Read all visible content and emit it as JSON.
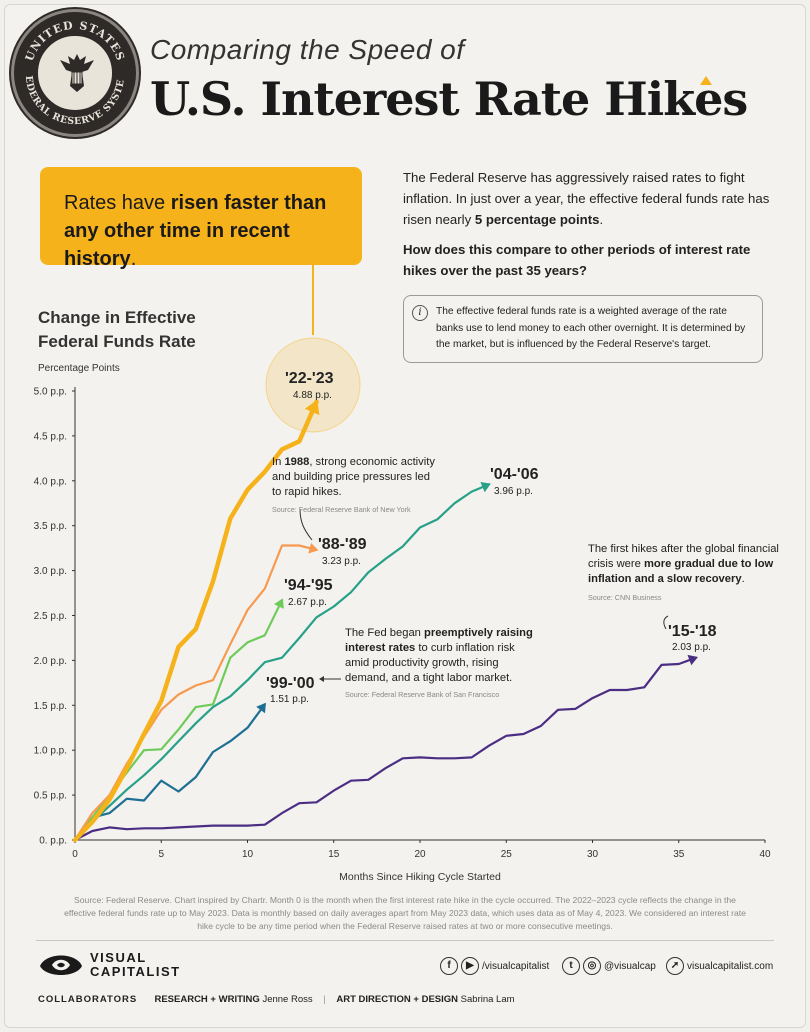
{
  "header": {
    "seal_text_top": "UNITED STATES",
    "seal_text_bottom": "FEDERAL RESERVE SYSTEM",
    "subtitle": "Comparing the Speed of",
    "title": "U.S. Interest Rate Hikes"
  },
  "callout": {
    "pre": "Rates have ",
    "bold1": "risen faster than any",
    "bold2": "other time in recent history",
    "post": "."
  },
  "intro": {
    "p1": "The Federal Reserve has aggressively raised rates to fight inflation. In just over a year, the effective federal funds rate has risen nearly ",
    "p1_bold": "5 percentage points",
    "p1_end": ".",
    "question": "How does this compare to other periods of interest rate hikes over the past 35 years?"
  },
  "info": {
    "icon": "info-icon",
    "text": "The effective federal funds rate is a weighted average of the rate banks use to lend money to each other overnight. It is determined by the market, but is influenced by the Federal Reserve's target."
  },
  "chart_data": {
    "type": "line",
    "title_line1": "Change in Effective",
    "title_line2": "Federal Funds Rate",
    "ylabel": "Percentage Points",
    "xlabel": "Months Since Hiking Cycle Started",
    "xlim": [
      0,
      40
    ],
    "ylim": [
      0,
      5
    ],
    "xticks": [
      "0",
      "5",
      "10",
      "15",
      "20",
      "25",
      "30",
      "35",
      "40"
    ],
    "yticks": [
      "0. p.p.",
      "0.5 p.p.",
      "1.0 p.p.",
      "1.5 p.p.",
      "2.0 p.p.",
      "2.5 p.p.",
      "3.0 p.p.",
      "3.5 p.p.",
      "4.0 p.p.",
      "4.5 p.p.",
      "5.0 p.p."
    ],
    "grid": false,
    "series": [
      {
        "name": "'15-'18",
        "total": "2.03 p.p.",
        "color": "#4b2e83",
        "values": [
          0,
          0.1,
          0.14,
          0.12,
          0.13,
          0.13,
          0.14,
          0.15,
          0.16,
          0.16,
          0.16,
          0.17,
          0.3,
          0.41,
          0.42,
          0.55,
          0.66,
          0.67,
          0.8,
          0.91,
          0.92,
          0.91,
          0.91,
          0.92,
          1.05,
          1.16,
          1.18,
          1.27,
          1.45,
          1.46,
          1.58,
          1.67,
          1.67,
          1.7,
          1.95,
          1.96,
          2.03
        ]
      },
      {
        "name": "'99-'00",
        "total": "1.51 p.p.",
        "color": "#1e6f93",
        "values": [
          0,
          0.25,
          0.3,
          0.46,
          0.44,
          0.66,
          0.54,
          0.7,
          0.98,
          1.1,
          1.25,
          1.51
        ]
      },
      {
        "name": "'04-'06",
        "total": "3.96 p.p.",
        "color": "#27a08a",
        "values": [
          0,
          0.2,
          0.38,
          0.56,
          0.72,
          0.9,
          1.1,
          1.3,
          1.48,
          1.6,
          1.78,
          1.98,
          2.03,
          2.25,
          2.48,
          2.6,
          2.76,
          2.98,
          3.13,
          3.27,
          3.48,
          3.57,
          3.75,
          3.88,
          3.96
        ]
      },
      {
        "name": "'94-'95",
        "total": "2.67 p.p.",
        "color": "#6ecb5a",
        "values": [
          0,
          0.25,
          0.5,
          0.75,
          1.0,
          1.01,
          1.23,
          1.48,
          1.51,
          2.03,
          2.2,
          2.28,
          2.67
        ]
      },
      {
        "name": "'88-'89",
        "total": "3.23 p.p.",
        "color": "#f79a50",
        "values": [
          0,
          0.3,
          0.5,
          0.85,
          1.15,
          1.45,
          1.62,
          1.72,
          1.78,
          2.18,
          2.56,
          2.8,
          3.28,
          3.28,
          3.23
        ]
      },
      {
        "name": "'22-'23",
        "total": "4.88 p.p.",
        "color": "#f6b21b",
        "values": [
          0,
          0.2,
          0.45,
          0.8,
          1.18,
          1.55,
          2.15,
          2.35,
          2.88,
          3.58,
          3.9,
          4.1,
          4.35,
          4.44,
          4.88
        ]
      }
    ],
    "annotations": {
      "a88_lead": "In ",
      "a88_year": "1988",
      "a88_rest": ", strong economic activity and building price pressures led to rapid hikes.",
      "a88_source": "Source: Federal Reserve Bank of New York",
      "a94_pre": "The Fed began ",
      "a94_bold": "preemptively raising interest rates",
      "a94_rest": " to curb inflation risk amid productivity growth, rising demand, and a tight labor market.",
      "a94_source": "Source: Federal Reserve Bank of San Francisco",
      "a15_pre": "The first hikes after the global financial crisis were ",
      "a15_bold": "more gradual due to low inflation and a slow recovery",
      "a15_end": ".",
      "a15_source": "Source: CNN Business"
    }
  },
  "source": "Source: Federal Reserve. Chart inspired by Chartr. Month 0 is the month when the first interest rate hike in the cycle occurred. The 2022–2023 cycle reflects the change in the effective federal funds rate up to May 2023. Data is monthly based on daily averages apart from May 2023 data, which uses data as of May 4, 2023. We considered an interest rate hike cycle to be any time period when the Federal Reserve raised rates at two or more consecutive meetings.",
  "footer": {
    "brand_line1": "VISUAL",
    "brand_line2": "CAPITALIST",
    "facebook_handle": "/visualcapitalist",
    "instagram_handle": "@visualcap",
    "website": "visualcapitalist.com",
    "collab_label": "COLLABORATORS",
    "research_label": "RESEARCH + WRITING",
    "research_name": "Jenne Ross",
    "art_label": "ART DIRECTION + DESIGN",
    "art_name": "Sabrina Lam"
  }
}
